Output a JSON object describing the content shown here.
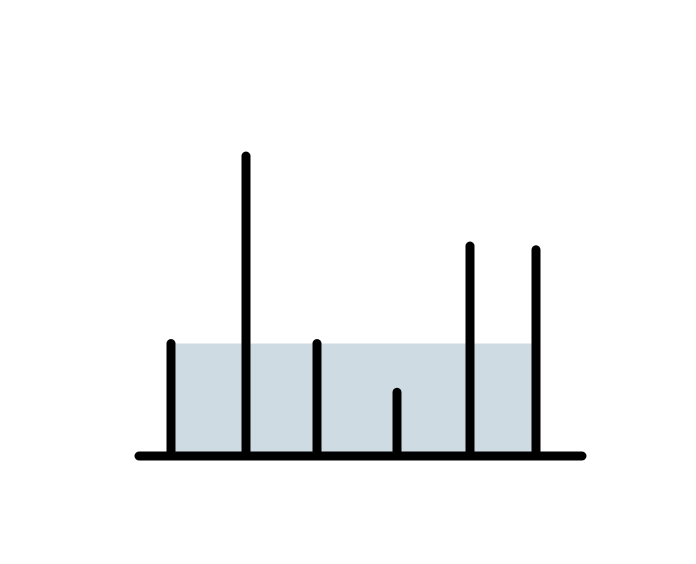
{
  "diagram": {
    "type": "container-with-water",
    "description_visible_text": "",
    "colors": {
      "background": "#ffffff",
      "line": "#000000",
      "water": "#cfdbe2"
    },
    "heights": [
      3,
      8,
      3,
      1.7,
      5.6,
      5.5
    ],
    "water_level": 3
  }
}
